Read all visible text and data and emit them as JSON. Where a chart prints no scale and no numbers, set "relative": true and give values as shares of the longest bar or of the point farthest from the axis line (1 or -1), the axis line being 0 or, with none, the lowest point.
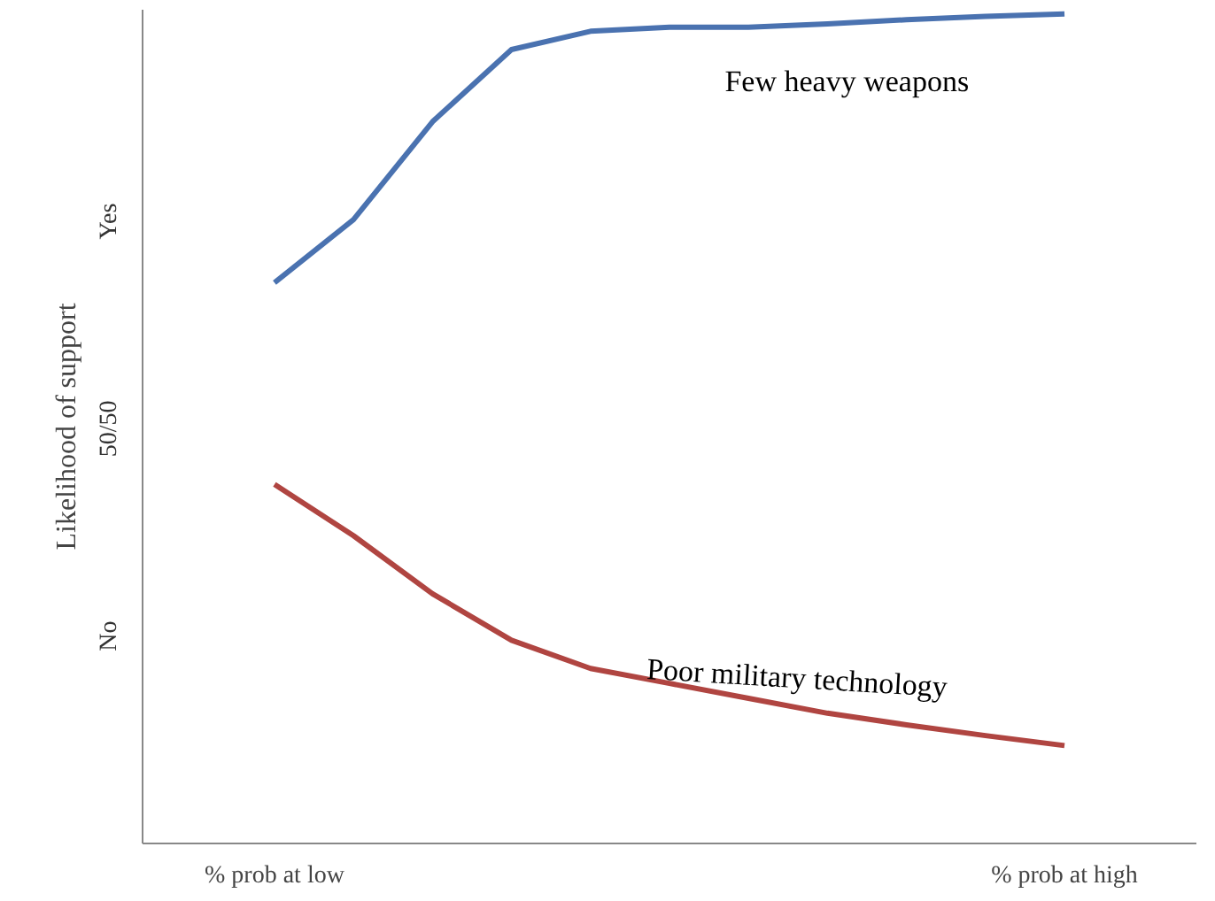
{
  "chart_data": {
    "type": "line",
    "ylabel": "Likelihood of support",
    "relative": true,
    "categories": [
      "% prob at low",
      null,
      null,
      null,
      null,
      null,
      null,
      null,
      null,
      null,
      "% prob at high"
    ],
    "annotations": [
      "No",
      "50/50",
      "Yes"
    ],
    "grid": false,
    "legend": false,
    "marker": "none",
    "line_style": "solid",
    "series": [
      {
        "name": "Few heavy weapons",
        "color": "#4a72b0",
        "values": [
          0.676,
          0.752,
          0.87,
          0.957,
          0.979,
          0.984,
          0.984,
          0.988,
          0.993,
          0.997,
          1.0
        ]
      },
      {
        "name": "Poor military technology",
        "color": "#b04541",
        "values": [
          0.433,
          0.371,
          0.301,
          0.245,
          0.211,
          0.193,
          0.175,
          0.157,
          0.143,
          0.13,
          0.118
        ]
      }
    ]
  }
}
